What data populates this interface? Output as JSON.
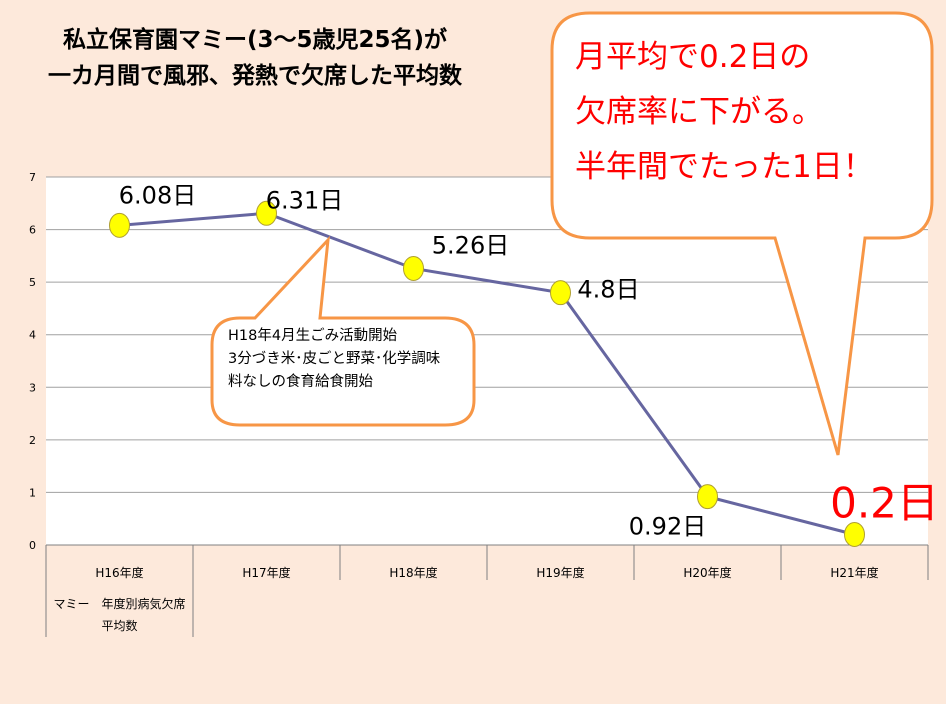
{
  "chart_data": {
    "type": "line",
    "title": "私立保育園マミー(3～5歳児25名)が一カ月間で風邪、発熱で欠席した平均数",
    "title_lines": [
      "私立保育園マミー(3～5歳児25名)が",
      "一カ月間で風邪、発熱で欠席した平均数"
    ],
    "categories": [
      "H16年度",
      "H17年度",
      "H18年度",
      "H19年度",
      "H20年度",
      "H21年度"
    ],
    "series": [
      {
        "name": "マミー 年度別病気欠席平均数",
        "legend_lines": [
          "マミー　年度別病気欠席",
          "平均数"
        ],
        "values": [
          6.08,
          6.31,
          5.26,
          4.8,
          0.92,
          0.2
        ],
        "color": "#6666a0",
        "marker_color": "#ffff00"
      }
    ],
    "data_labels": [
      "6.08日",
      "6.31日",
      "5.26日",
      "4.8日",
      "0.92日",
      "0.2日"
    ],
    "ylim": [
      0,
      7
    ],
    "yticks": [
      "0",
      "1",
      "2",
      "3",
      "4",
      "5",
      "6",
      "7"
    ],
    "grid": true,
    "legend": "bottom-table",
    "annotations": {
      "callout_main": [
        "月平均で0.2日の",
        "欠席率に下がる。",
        "半年間でたった1日！"
      ],
      "callout_note": [
        "H18年4月生ごみ活動開始",
        "3分づき米･皮ごと野菜･化学調味",
        "料なしの食育給食開始"
      ]
    },
    "colors": {
      "background": "#fde9db",
      "callout_border": "#f79646",
      "highlight_text": "#ff0000"
    }
  }
}
